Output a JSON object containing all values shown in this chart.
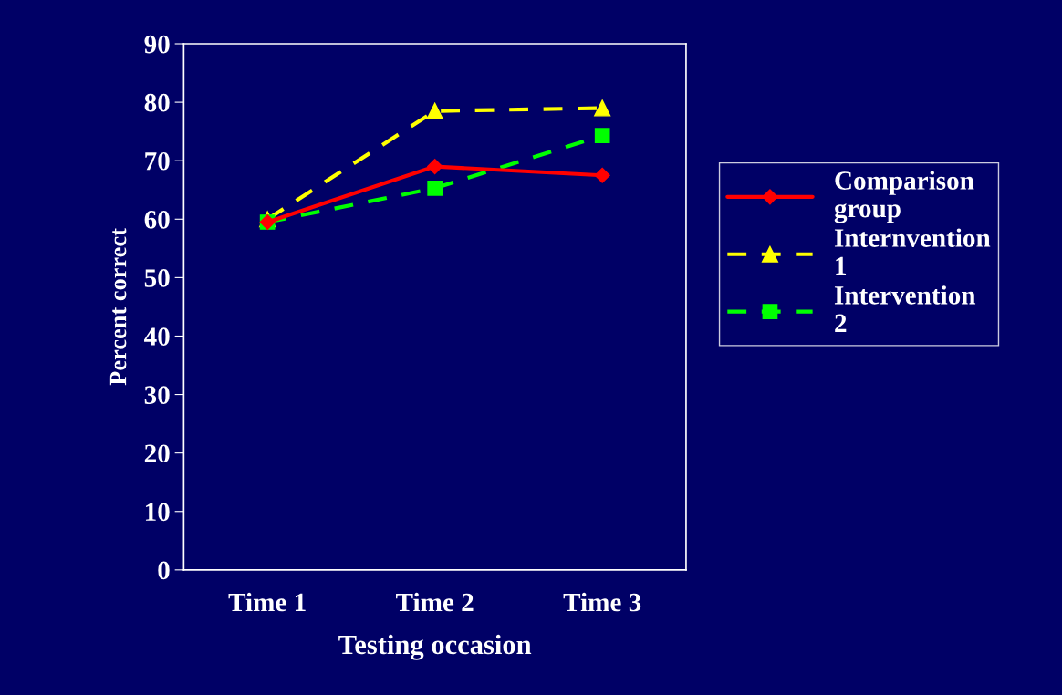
{
  "chart_data": {
    "type": "line",
    "xlabel": "Testing occasion",
    "ylabel": "Percent correct",
    "categories": [
      "Time 1",
      "Time 2",
      "Time 3"
    ],
    "series": [
      {
        "name": "Comparison group",
        "color": "#ff0000",
        "marker": "diamond",
        "line_style": "solid",
        "values": [
          59.5,
          69,
          67.5
        ]
      },
      {
        "name": "Internvention 1",
        "color": "#ffff00",
        "marker": "triangle",
        "line_style": "dashed",
        "values": [
          60,
          78.5,
          79
        ]
      },
      {
        "name": "Intervention 2",
        "color": "#00ff00",
        "marker": "square",
        "line_style": "dashed",
        "values": [
          59.5,
          65.3,
          74.3
        ]
      }
    ],
    "ylim": [
      0,
      90
    ],
    "yticks": [
      0,
      10,
      20,
      30,
      40,
      50,
      60,
      70,
      80,
      90
    ],
    "grid": false,
    "legend": "right"
  }
}
